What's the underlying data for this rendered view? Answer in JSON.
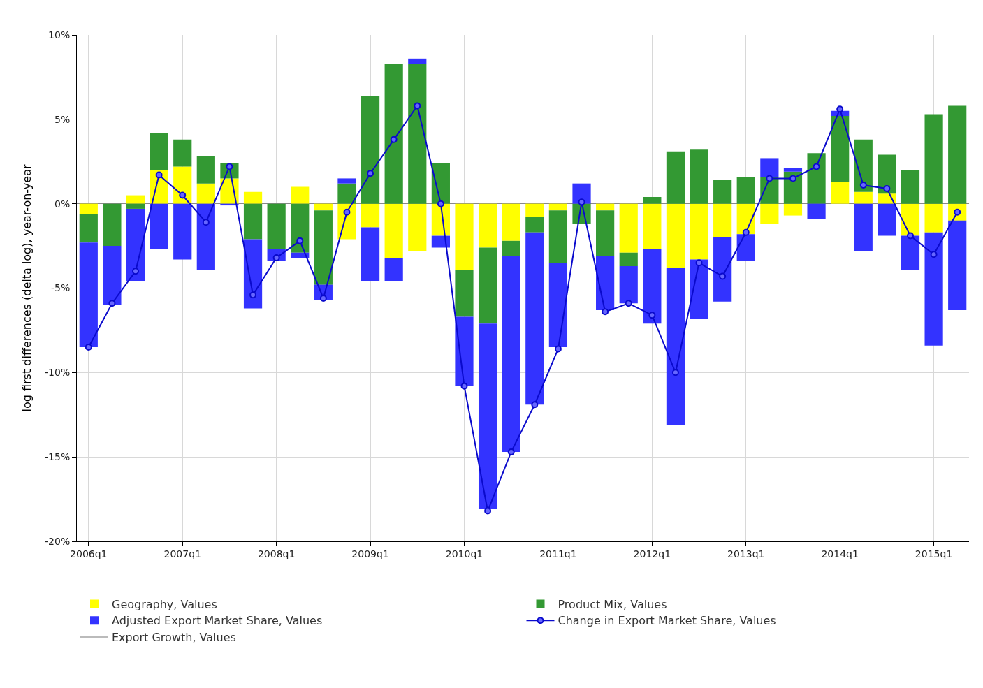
{
  "chart_data": {
    "type": "bar",
    "stacked": true,
    "ylabel": "log first differences (delta log), year-on-year",
    "categories": [
      "2006q1",
      null,
      null,
      null,
      "2007q1",
      null,
      null,
      null,
      "2008q1",
      null,
      null,
      null,
      "2009q1",
      null,
      null,
      null,
      "2010q1",
      null,
      null,
      null,
      "2011q1",
      null,
      null,
      null,
      "2012q1",
      null,
      null,
      null,
      "2013q1",
      null,
      null,
      null,
      "2014q1",
      null,
      null,
      null,
      "2015q1",
      null
    ],
    "ylim": [
      -20,
      10
    ],
    "yticks": [
      {
        "value": -20,
        "label": "-20%"
      },
      {
        "value": -15,
        "label": "-15%"
      },
      {
        "value": -10,
        "label": "-10%"
      },
      {
        "value": -5,
        "label": "-5%"
      },
      {
        "value": 0,
        "label": "0%"
      },
      {
        "value": 5,
        "label": "5%"
      },
      {
        "value": 10,
        "label": "10%"
      }
    ],
    "grid": true,
    "legend": "bottom",
    "series": [
      {
        "name": "Geography, Values",
        "color": "#ffff00",
        "values": [
          -0.6,
          0,
          0.5,
          2.0,
          2.2,
          1.2,
          1.5,
          0.7,
          0,
          1.0,
          -0.4,
          -2.1,
          -1.4,
          -3.2,
          -2.8,
          -1.9,
          -3.9,
          -2.6,
          -2.2,
          -0.8,
          -0.4,
          0,
          -0.4,
          -2.9,
          -2.7,
          -3.8,
          -3.3,
          -2.0,
          -1.8,
          -1.2,
          -0.7,
          0,
          1.3,
          0.7,
          0.6,
          -1.9,
          -1.7,
          -1.0
        ]
      },
      {
        "name": "Product Mix, Values",
        "color": "#339933",
        "values": [
          -1.7,
          -2.5,
          -0.3,
          2.2,
          1.6,
          1.6,
          0.9,
          -2.1,
          -2.7,
          -2.9,
          -4.4,
          1.2,
          6.4,
          8.3,
          8.3,
          2.4,
          -2.8,
          -4.5,
          -0.9,
          -0.9,
          -3.1,
          -1.2,
          -2.7,
          -0.8,
          0.4,
          3.1,
          3.2,
          1.4,
          1.6,
          1.6,
          1.9,
          3.0,
          3.9,
          3.1,
          2.3,
          2.0,
          5.3,
          5.8
        ]
      },
      {
        "name": "Adjusted Export Market Share, Values",
        "color": "#3333ff",
        "values": [
          -6.2,
          -3.5,
          -4.3,
          -2.7,
          -3.3,
          -3.9,
          -0.1,
          -4.1,
          -0.7,
          -0.3,
          -0.9,
          0.3,
          -3.2,
          -1.4,
          0.3,
          -0.7,
          -4.1,
          -11.0,
          -11.6,
          -10.2,
          -5.0,
          1.2,
          -3.2,
          -2.2,
          -4.4,
          -9.3,
          -3.5,
          -3.8,
          -1.6,
          1.1,
          0.2,
          -0.9,
          0.3,
          -2.8,
          -1.9,
          -2.0,
          -6.7,
          -5.3
        ]
      },
      {
        "name": "Change in Export Market Share, Values",
        "type": "line",
        "color": "#0a0acc",
        "marker": "circle",
        "values": [
          -8.5,
          -5.9,
          -4.0,
          1.7,
          0.5,
          -1.1,
          2.2,
          -5.4,
          -3.2,
          -2.2,
          -5.6,
          -0.5,
          1.8,
          3.8,
          5.8,
          0.0,
          -10.8,
          -18.2,
          -14.7,
          -11.9,
          -8.6,
          0.1,
          -6.4,
          -5.9,
          -6.6,
          -10.0,
          -3.5,
          -4.3,
          -1.7,
          1.5,
          1.5,
          2.2,
          5.6,
          1.1,
          0.9,
          -1.9,
          -3.0,
          -0.5
        ]
      },
      {
        "name": "Export Growth, Values",
        "type": "line",
        "color": "#bbbbbb",
        "values": [
          null,
          null,
          null,
          null,
          null,
          null,
          null,
          null,
          null,
          null,
          null,
          null,
          null,
          null,
          null,
          null,
          null,
          null,
          null,
          null,
          null,
          null,
          null,
          null,
          null,
          null,
          null,
          null,
          null,
          null,
          null,
          null,
          null,
          null,
          null,
          null,
          null,
          null
        ]
      }
    ]
  }
}
